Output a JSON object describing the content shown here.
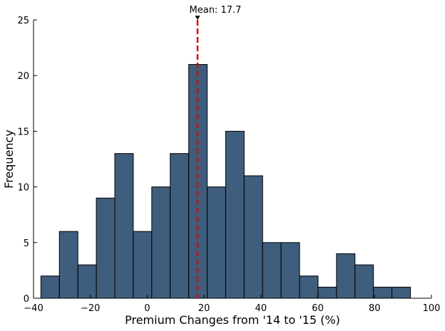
{
  "chart_data": {
    "type": "bar",
    "subtype": "histogram",
    "xlabel": "Premium Changes from '14 to '15 (%)",
    "ylabel": "Frequency",
    "xlim": [
      -40,
      100
    ],
    "ylim": [
      0,
      25
    ],
    "x_ticks": [
      -40,
      -20,
      0,
      20,
      40,
      60,
      80,
      100
    ],
    "y_ticks": [
      0,
      5,
      10,
      15,
      20,
      25
    ],
    "x_tick_labels": [
      "−40",
      "−20",
      "0",
      "20",
      "40",
      "60",
      "80",
      "100"
    ],
    "y_tick_labels": [
      "0",
      "5",
      "10",
      "15",
      "20",
      "25"
    ],
    "bin_edges": [
      -37.4,
      -30.9,
      -24.4,
      -17.9,
      -11.4,
      -4.9,
      1.6,
      8.1,
      14.6,
      21.1,
      27.6,
      34.1,
      40.6,
      47.1,
      53.6,
      60.1,
      66.6,
      73.1,
      79.6,
      86.1,
      92.6
    ],
    "values": [
      2,
      6,
      3,
      9,
      13,
      6,
      10,
      13,
      21,
      10,
      15,
      11,
      5,
      5,
      2,
      1,
      4,
      3,
      1,
      1
    ],
    "grid": false,
    "mean_line": {
      "value": 17.7,
      "label": "Mean: 17.7"
    },
    "colors": {
      "bar": "#3f5d7d",
      "edge": "#000000",
      "mean_line": "#e00000"
    }
  }
}
